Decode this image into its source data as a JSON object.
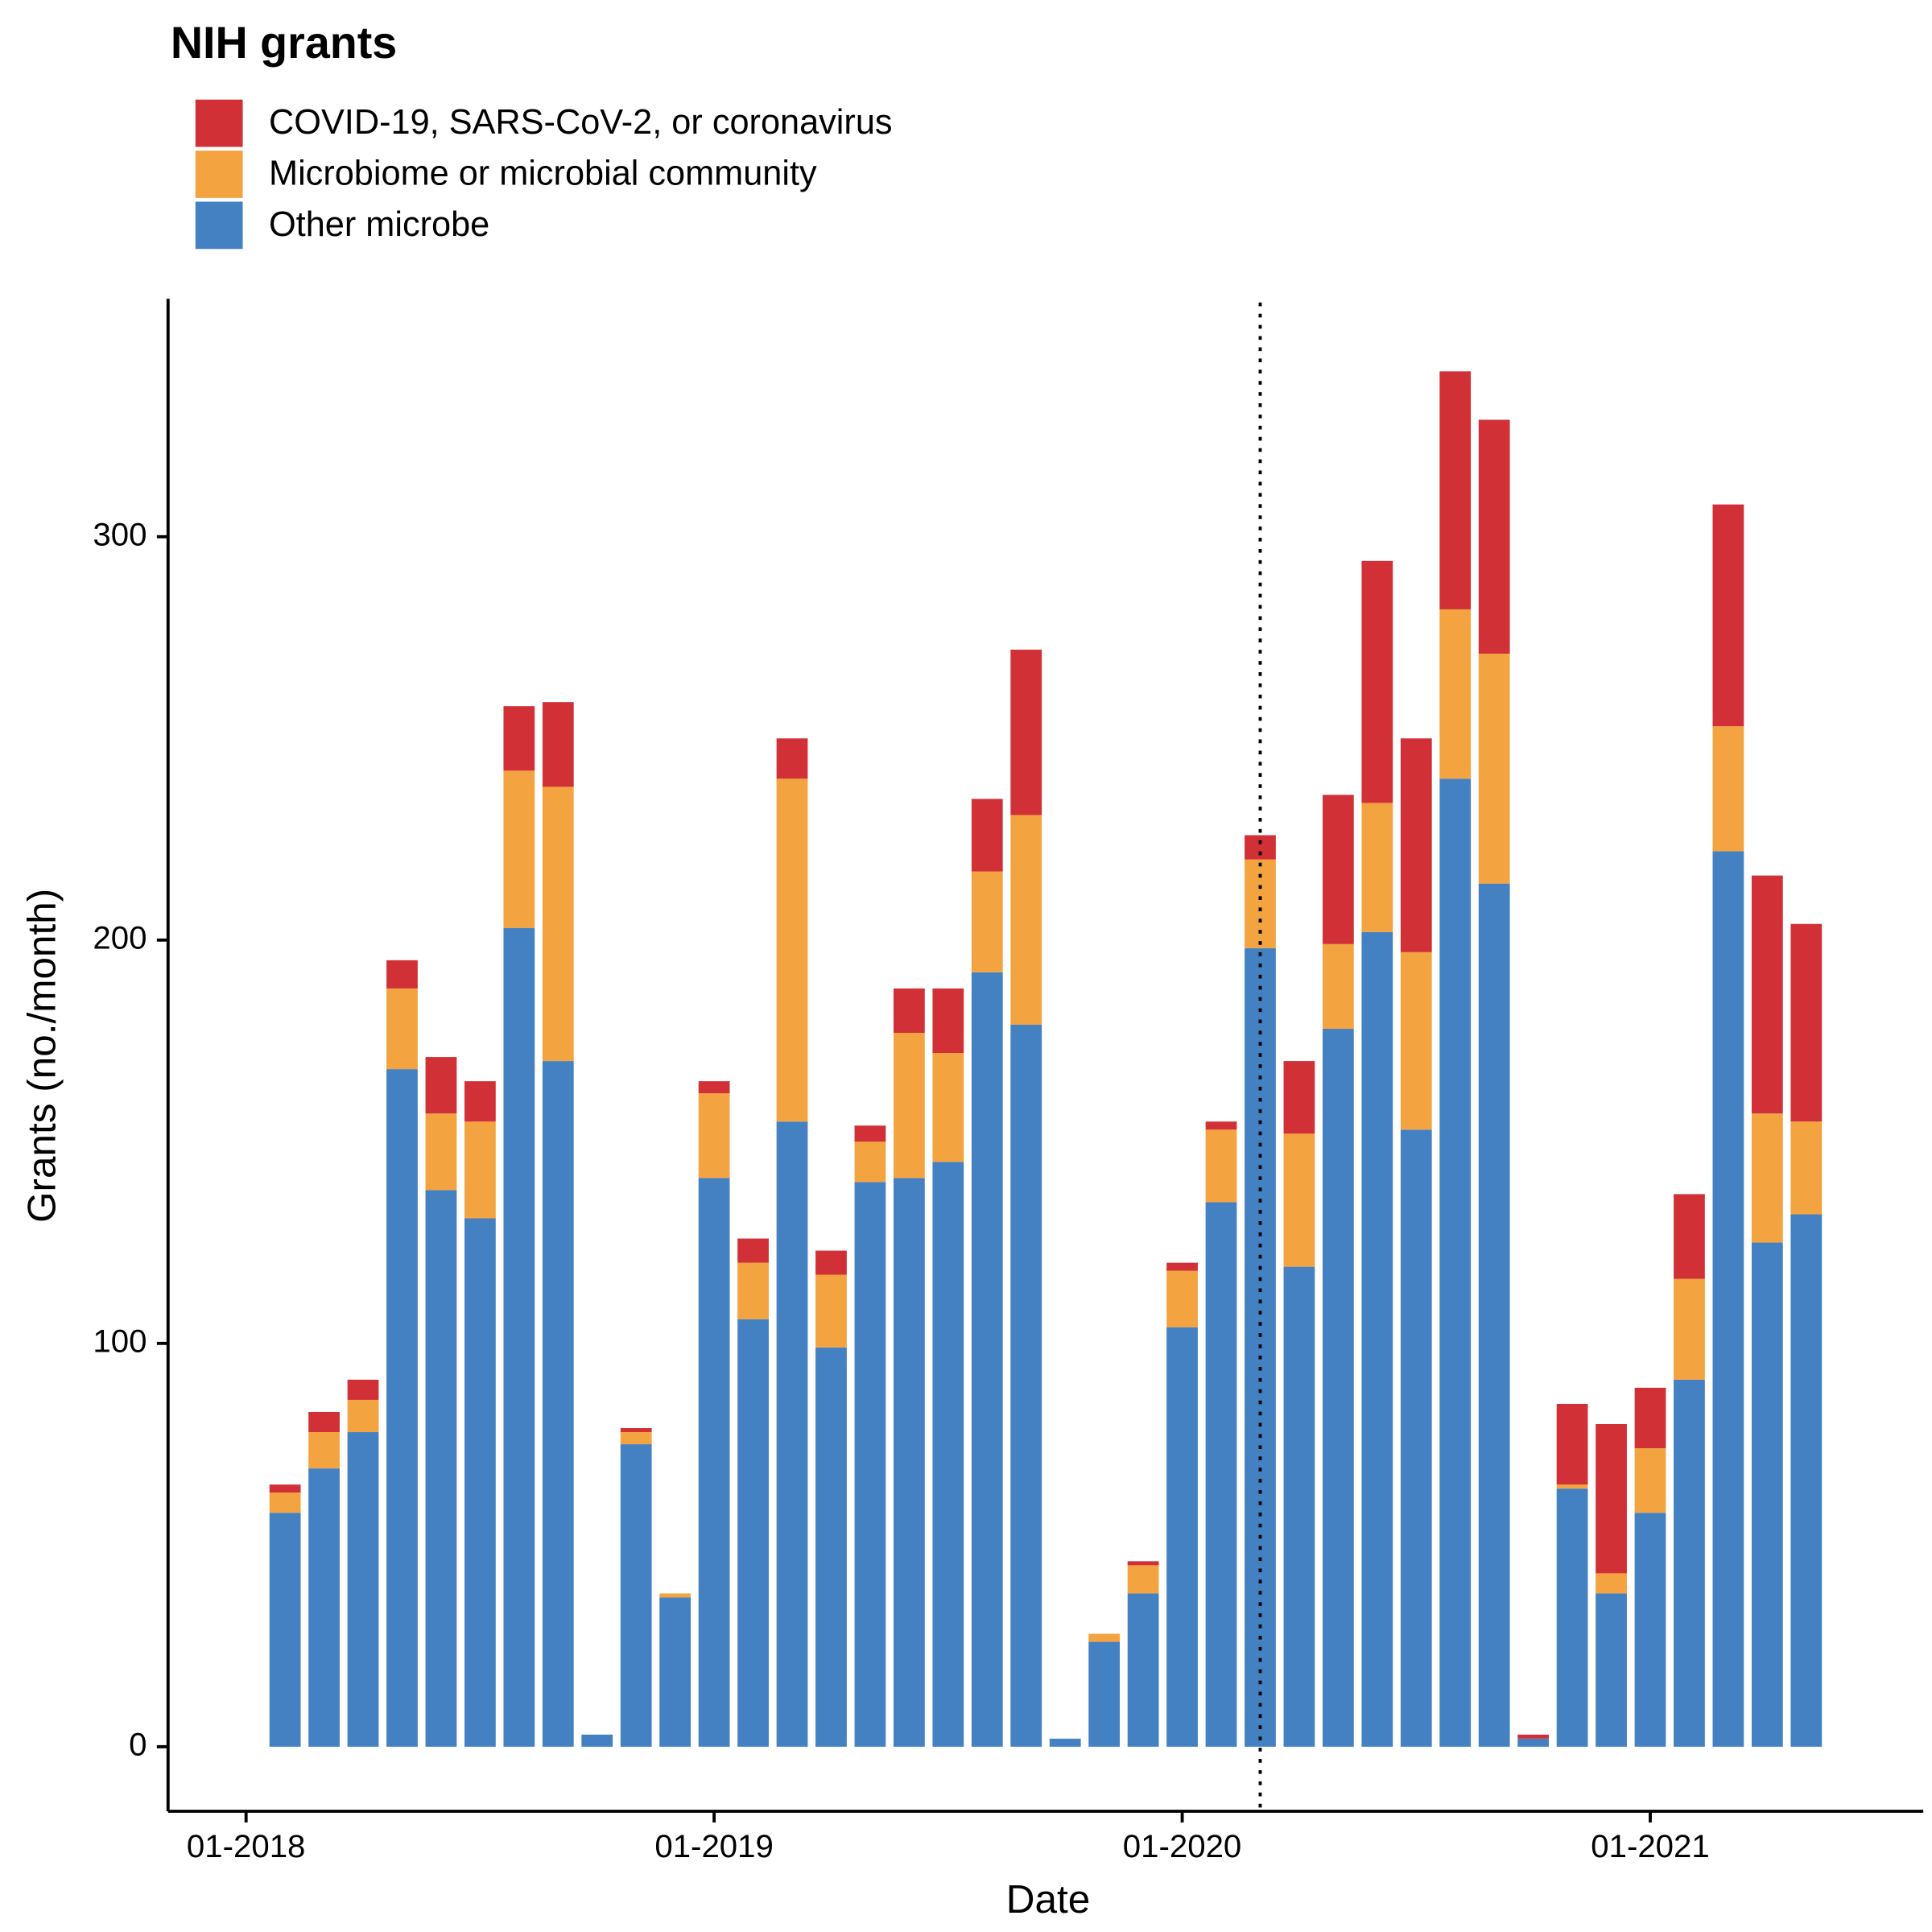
{
  "chart_data": {
    "type": "stacked_bar",
    "title": "NIH grants",
    "x_label": "Date",
    "y_label": "Grants (no./month)",
    "x": [
      "02-2018",
      "03-2018",
      "04-2018",
      "05-2018",
      "06-2018",
      "07-2018",
      "08-2018",
      "09-2018",
      "10-2018",
      "11-2018",
      "12-2018",
      "01-2019",
      "02-2019",
      "03-2019",
      "04-2019",
      "05-2019",
      "06-2019",
      "07-2019",
      "08-2019",
      "09-2019",
      "10-2019",
      "11-2019",
      "12-2019",
      "01-2020",
      "02-2020",
      "03-2020",
      "04-2020",
      "05-2020",
      "06-2020",
      "07-2020",
      "08-2020",
      "09-2020",
      "10-2020",
      "11-2020",
      "12-2020",
      "01-2021",
      "02-2021",
      "03-2021",
      "04-2021",
      "05-2021"
    ],
    "series": [
      {
        "name": "COVID-19, SARS-CoV-2, or coronavirus",
        "color": "#d13136",
        "values": [
          2,
          5,
          5,
          7,
          14,
          10,
          16,
          21,
          0,
          1,
          0,
          3,
          6,
          10,
          6,
          4,
          11,
          16,
          18,
          41,
          0,
          0,
          1,
          2,
          2,
          6,
          18,
          37,
          60,
          53,
          59,
          58,
          1,
          20,
          37,
          15,
          21,
          55,
          59,
          49
        ]
      },
      {
        "name": "Microbiome or microbial community",
        "color": "#f3a33f",
        "values": [
          5,
          9,
          8,
          20,
          19,
          24,
          39,
          68,
          0,
          3,
          1,
          21,
          14,
          85,
          18,
          10,
          36,
          27,
          25,
          52,
          0,
          2,
          7,
          14,
          18,
          22,
          33,
          21,
          32,
          44,
          42,
          57,
          0,
          1,
          5,
          16,
          25,
          31,
          32,
          23
        ]
      },
      {
        "name": "Other microbe",
        "color": "#4481c3",
        "values": [
          58,
          69,
          78,
          168,
          138,
          131,
          203,
          170,
          3,
          75,
          37,
          141,
          106,
          155,
          99,
          140,
          141,
          145,
          192,
          179,
          2,
          26,
          38,
          104,
          135,
          198,
          119,
          178,
          202,
          153,
          240,
          214,
          2,
          64,
          38,
          58,
          91,
          222,
          125,
          132
        ]
      }
    ],
    "xlim": [
      "11-2017",
      "08-2021"
    ],
    "xticks": [
      "01-2018",
      "01-2019",
      "01-2020",
      "01-2021"
    ],
    "ylim": [
      -16,
      359
    ],
    "yticks": [
      0,
      100,
      200,
      300
    ],
    "vline": "03-2020",
    "legend": "top-left"
  }
}
